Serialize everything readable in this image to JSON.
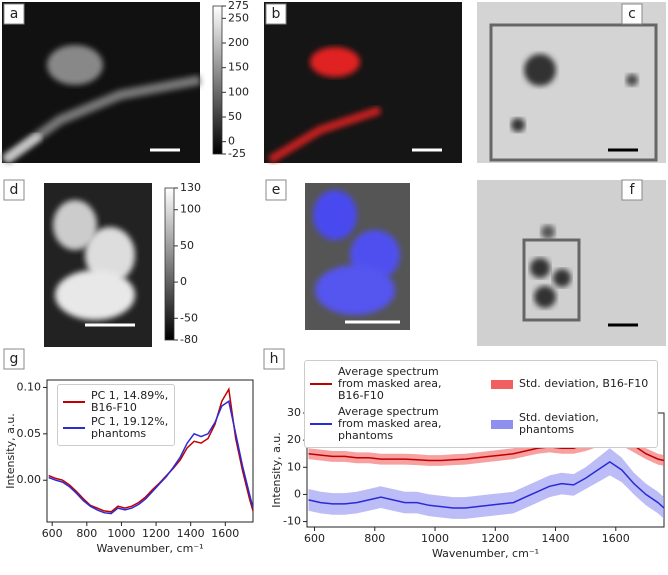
{
  "panels": [
    "a",
    "b",
    "c",
    "d",
    "e",
    "f",
    "g",
    "h"
  ],
  "chart_data": [
    {
      "type": "colorbar",
      "ylim": [
        -25,
        275
      ],
      "yticks": [
        275,
        250,
        200,
        150,
        100,
        50,
        0,
        -25
      ]
    },
    {
      "type": "colorbar",
      "ylim": [
        -80,
        130
      ],
      "yticks": [
        130,
        100,
        50,
        0,
        -50,
        -80
      ]
    },
    {
      "type": "line",
      "xlabel": "Wavenumber, cm⁻¹",
      "ylabel": "Intensity, a.u.",
      "legend": "upper left",
      "xlim": [
        570,
        1760
      ],
      "xticks": [
        600,
        800,
        1000,
        1200,
        1400,
        1600
      ],
      "ylim": [
        -0.045,
        0.108
      ],
      "yticks": [
        {
          "value": 0,
          "label": "0.00"
        },
        0.05,
        {
          "value": 0.1,
          "label": "0.10"
        }
      ],
      "x": [
        580,
        620,
        660,
        700,
        740,
        780,
        820,
        860,
        900,
        940,
        980,
        1020,
        1060,
        1100,
        1140,
        1180,
        1220,
        1260,
        1300,
        1340,
        1380,
        1420,
        1460,
        1500,
        1540,
        1580,
        1620,
        1660,
        1700,
        1740,
        1760
      ],
      "series": [
        {
          "name": "PC 1, 14.89%, B16-F10",
          "color": "#c00000",
          "values": [
            0.005,
            0.002,
            0,
            -0.005,
            -0.012,
            -0.02,
            -0.027,
            -0.03,
            -0.033,
            -0.034,
            -0.028,
            -0.03,
            -0.028,
            -0.024,
            -0.018,
            -0.01,
            -0.003,
            0.005,
            0.013,
            0.022,
            0.035,
            0.042,
            0.04,
            0.045,
            0.06,
            0.085,
            0.098,
            0.045,
            0.01,
            -0.02,
            -0.033
          ]
        },
        {
          "name": "PC 1, 19.12%, phantoms",
          "color": "#2a2ad8",
          "values": [
            0.003,
            0,
            -0.002,
            -0.007,
            -0.014,
            -0.022,
            -0.028,
            -0.032,
            -0.035,
            -0.036,
            -0.03,
            -0.032,
            -0.03,
            -0.026,
            -0.02,
            -0.012,
            -0.004,
            0.004,
            0.014,
            0.025,
            0.04,
            0.05,
            0.047,
            0.05,
            0.062,
            0.08,
            0.085,
            0.05,
            0.015,
            -0.015,
            -0.03
          ]
        }
      ]
    },
    {
      "type": "line",
      "xlabel": "Wavenumber, cm⁻¹",
      "ylabel": "Intensity, a.u.",
      "legend": "top",
      "xlim": [
        575,
        1760
      ],
      "xticks": [
        600,
        800,
        1000,
        1200,
        1400,
        1600
      ],
      "ylim": [
        -12,
        30
      ],
      "yticks": [
        -10,
        0,
        10,
        20,
        30
      ],
      "x": [
        580,
        620,
        660,
        700,
        740,
        780,
        820,
        860,
        900,
        940,
        980,
        1020,
        1060,
        1100,
        1140,
        1180,
        1220,
        1260,
        1300,
        1340,
        1380,
        1420,
        1460,
        1500,
        1540,
        1580,
        1620,
        1660,
        1700,
        1740,
        1760
      ],
      "series": [
        {
          "name": "Average spectrum from masked area, B16-F10",
          "color": "#c00000",
          "error_name": "Std. deviation, B16-F10",
          "error_color": "#f06060",
          "values": [
            15,
            14.5,
            14,
            14,
            13.5,
            13.5,
            13,
            13,
            13,
            12.8,
            12.5,
            12.5,
            12.8,
            13,
            13.5,
            14,
            14.5,
            15,
            16,
            17,
            17.5,
            17,
            17,
            18.5,
            20.5,
            22.5,
            21,
            18,
            15,
            13,
            12.5
          ],
          "error": [
            2,
            2,
            2,
            2,
            2,
            2,
            2,
            2,
            2,
            2,
            2,
            2,
            2,
            2,
            2,
            2,
            2,
            2,
            2,
            2,
            2,
            2,
            2,
            2.5,
            3,
            3.5,
            3,
            2.5,
            2,
            2,
            2
          ]
        },
        {
          "name": "Average spectrum from masked area, phantoms",
          "color": "#2a2ad8",
          "error_name": "Std. deviation, phantoms",
          "error_color": "#8f8ff0",
          "values": [
            -2,
            -3,
            -3.5,
            -3.5,
            -3,
            -2,
            -1,
            -2,
            -3,
            -3,
            -4,
            -4.5,
            -5,
            -5,
            -4.5,
            -4,
            -3.5,
            -3,
            -1,
            1,
            3,
            4,
            3.5,
            6,
            9,
            12,
            9,
            4,
            0,
            -3,
            -5
          ],
          "error": [
            4,
            4,
            4,
            4,
            4,
            4,
            4,
            4,
            4,
            4,
            4,
            4,
            4,
            4,
            4,
            4,
            4,
            4,
            4,
            4,
            4,
            4,
            4,
            4,
            4.5,
            5,
            4.5,
            4,
            4,
            4,
            4
          ]
        }
      ]
    }
  ]
}
